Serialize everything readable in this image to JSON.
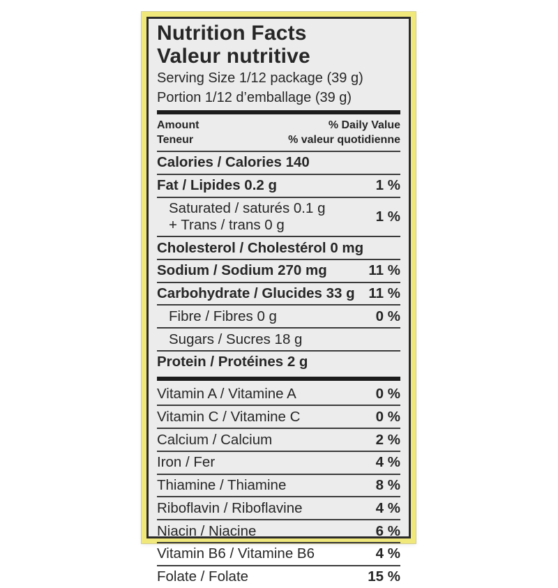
{
  "colors": {
    "frame_yellow": "#f0e87a",
    "label_background": "#ececec",
    "ink": "#262626"
  },
  "label": {
    "title_en": "Nutrition Facts",
    "title_fr": "Valeur nutritive",
    "serving_en": "Serving Size 1/12 package (39 g)",
    "serving_fr": "Portion 1/12 d’emballage (39 g)",
    "header": {
      "amount_en": "Amount",
      "amount_fr": "Teneur",
      "daily_value_en": "% Daily Value",
      "daily_value_fr": "% valeur quotidienne"
    },
    "rows": [
      {
        "name": "calories",
        "text": "Calories / Calories 140",
        "value": "",
        "bold": true,
        "indent": false,
        "sep_after": "thin"
      },
      {
        "name": "fat",
        "text": "Fat / Lipides 0.2 g",
        "value": "1 %",
        "bold": true,
        "indent": false,
        "sep_after": "thin"
      },
      {
        "name": "saturated-trans",
        "lines": [
          "Saturated / saturés 0.1 g",
          "+ Trans / trans 0 g"
        ],
        "value": "1 %",
        "bold": false,
        "indent": true,
        "sep_after": "thin"
      },
      {
        "name": "cholesterol",
        "text": "Cholesterol / Cholestérol 0 mg",
        "value": "",
        "bold": true,
        "indent": false,
        "sep_after": "thin"
      },
      {
        "name": "sodium",
        "text": "Sodium / Sodium 270 mg",
        "value": "11 %",
        "bold": true,
        "indent": false,
        "sep_after": "thin"
      },
      {
        "name": "carbohydrate",
        "text": "Carbohydrate / Glucides 33 g",
        "value": "11 %",
        "bold": true,
        "indent": false,
        "sep_after": "thin"
      },
      {
        "name": "fibre",
        "text": "Fibre / Fibres 0 g",
        "value": "0 %",
        "bold": false,
        "indent": true,
        "sep_after": "thin"
      },
      {
        "name": "sugars",
        "text": "Sugars / Sucres 18 g",
        "value": "",
        "bold": false,
        "indent": true,
        "sep_after": "thin"
      },
      {
        "name": "protein",
        "text": "Protein / Protéines 2 g",
        "value": "",
        "bold": true,
        "indent": false,
        "sep_after": "thick"
      },
      {
        "name": "vitamin-a",
        "text": "Vitamin A / Vitamine A",
        "value": "0 %",
        "bold": false,
        "indent": false,
        "sep_after": "thin"
      },
      {
        "name": "vitamin-c",
        "text": "Vitamin C / Vitamine C",
        "value": "0 %",
        "bold": false,
        "indent": false,
        "sep_after": "thin"
      },
      {
        "name": "calcium",
        "text": "Calcium / Calcium",
        "value": "2 %",
        "bold": false,
        "indent": false,
        "sep_after": "thin"
      },
      {
        "name": "iron",
        "text": "Iron / Fer",
        "value": "4 %",
        "bold": false,
        "indent": false,
        "sep_after": "thin"
      },
      {
        "name": "thiamine",
        "text": "Thiamine / Thiamine",
        "value": "8 %",
        "bold": false,
        "indent": false,
        "sep_after": "thin"
      },
      {
        "name": "riboflavin",
        "text": "Riboflavin / Riboflavine",
        "value": "4 %",
        "bold": false,
        "indent": false,
        "sep_after": "thin"
      },
      {
        "name": "niacin",
        "text": "Niacin / Niacine",
        "value": "6 %",
        "bold": false,
        "indent": false,
        "sep_after": "thin"
      },
      {
        "name": "vitamin-b6",
        "text": "Vitamin B6 / Vitamine B6",
        "value": "4 %",
        "bold": false,
        "indent": false,
        "sep_after": "thin"
      },
      {
        "name": "folate",
        "text": "Folate / Folate",
        "value": "15 %",
        "bold": false,
        "indent": false,
        "sep_after": "none"
      }
    ]
  }
}
